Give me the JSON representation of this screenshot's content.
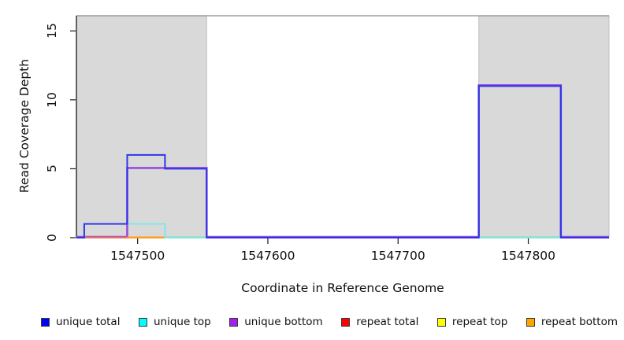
{
  "axes": {
    "xlabel": "Coordinate in Reference Genome",
    "ylabel": "Read Coverage Depth"
  },
  "chart_data": {
    "type": "line",
    "subtype": "step-coverage-plot",
    "title": "",
    "xlabel": "Coordinate in Reference Genome",
    "ylabel": "Read Coverage Depth",
    "xlim": [
      1547453,
      1547862
    ],
    "ylim": [
      0,
      16.1
    ],
    "x_ticks": [
      1547500,
      1547600,
      1547700,
      1547800
    ],
    "y_ticks": [
      0,
      5,
      10,
      15
    ],
    "grid": false,
    "legend_position": "bottom",
    "shade_color": "#d9d9d9",
    "shade_border_color": "#bfbfbf",
    "axis_color": "#1a1a1a",
    "top_border_color": "#8a8a8a",
    "shaded_regions": [
      {
        "from": 1547453,
        "to": 1547553
      },
      {
        "from": 1547762,
        "to": 1547862
      }
    ],
    "series": [
      {
        "name": "unique total",
        "legend_color": "#0000ff",
        "line_color": "#2d35e8",
        "steps": [
          [
            1547453,
            0
          ],
          [
            1547459,
            1
          ],
          [
            1547492,
            6
          ],
          [
            1547521,
            5
          ],
          [
            1547553,
            0
          ],
          [
            1547762,
            11
          ],
          [
            1547825,
            0
          ]
        ]
      },
      {
        "name": "unique top",
        "legend_color": "#00ffff",
        "line_color": "#7ce8e8",
        "steps": [
          [
            1547453,
            0
          ],
          [
            1547459,
            1
          ],
          [
            1547521,
            0
          ]
        ]
      },
      {
        "name": "unique bottom",
        "legend_color": "#a020f0",
        "line_color": "#9a4ae0",
        "steps": [
          [
            1547453,
            0
          ],
          [
            1547492,
            5
          ],
          [
            1547553,
            0
          ],
          [
            1547762,
            11
          ],
          [
            1547825,
            0
          ]
        ]
      },
      {
        "name": "repeat total",
        "legend_color": "#ff0000",
        "line_color": "#e06a7a",
        "steps": [
          [
            1547453,
            0
          ]
        ]
      },
      {
        "name": "repeat top",
        "legend_color": "#ffff00",
        "line_color": "#f0ec5a",
        "steps": [
          [
            1547453,
            0
          ]
        ]
      },
      {
        "name": "repeat bottom",
        "legend_color": "#ffa500",
        "line_color": "#ff9d1e",
        "steps": [
          [
            1547453,
            0
          ]
        ]
      }
    ],
    "baseline_segments": [
      {
        "from": 1547459,
        "to": 1547492,
        "color": "#e06a7a"
      },
      {
        "from": 1547492,
        "to": 1547521,
        "color": "#ff9d1e"
      },
      {
        "from": 1547521,
        "to": 1547553,
        "color": "#8fdc8f"
      },
      {
        "from": 1547762,
        "to": 1547825,
        "color": "#8fdc8f"
      }
    ]
  },
  "legend": {
    "items": [
      {
        "label": "unique total",
        "color": "#0000ff"
      },
      {
        "label": "unique top",
        "color": "#00ffff"
      },
      {
        "label": "unique bottom",
        "color": "#a020f0"
      },
      {
        "label": "repeat total",
        "color": "#ff0000"
      },
      {
        "label": "repeat top",
        "color": "#ffff00"
      },
      {
        "label": "repeat bottom",
        "color": "#ffa500"
      }
    ]
  }
}
